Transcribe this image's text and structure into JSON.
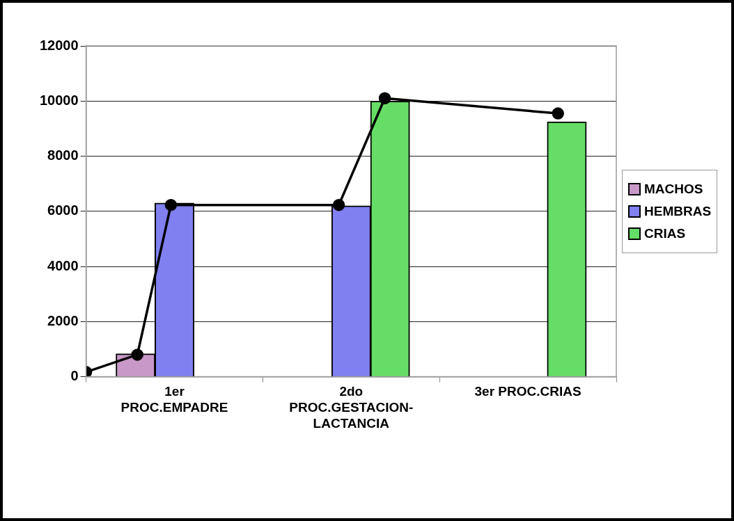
{
  "chart_data": {
    "type": "bar",
    "series": [
      {
        "name": "MACHOS",
        "color": "#c898c8",
        "x": [
          0.28
        ],
        "values": [
          830
        ]
      },
      {
        "name": "HEMBRAS",
        "color": "#8080f0",
        "x": [
          0.5,
          1.5
        ],
        "values": [
          6300,
          6200
        ]
      },
      {
        "name": "CRIAS",
        "color": "#66dd66",
        "x": [
          1.72,
          2.72
        ],
        "values": [
          10000,
          9250
        ]
      },
      {
        "type": "line",
        "color": "#000000",
        "x": [
          0,
          0.29,
          0.48,
          1.43,
          1.69,
          2.67
        ],
        "values": [
          170,
          800,
          6230,
          6230,
          10100,
          9550
        ],
        "marker": "circle"
      }
    ],
    "xlim": [
      0,
      3
    ],
    "xticks": [
      {
        "value": 0,
        "label": null
      },
      {
        "value": 0.5,
        "label": "1er PROC.EMPADRE"
      },
      {
        "value": 1,
        "label": null
      },
      {
        "value": 1.5,
        "label": "2do PROC.GESTACION-LACTANCIA"
      },
      {
        "value": 2,
        "label": null
      },
      {
        "value": 2.5,
        "label": "3er PROC.CRIAS"
      },
      {
        "value": 3,
        "label": null
      }
    ],
    "ylim": [
      0,
      12000
    ],
    "yticks": [
      0,
      2000,
      4000,
      6000,
      8000,
      10000,
      12000
    ],
    "grid": "y",
    "legend": "right"
  }
}
